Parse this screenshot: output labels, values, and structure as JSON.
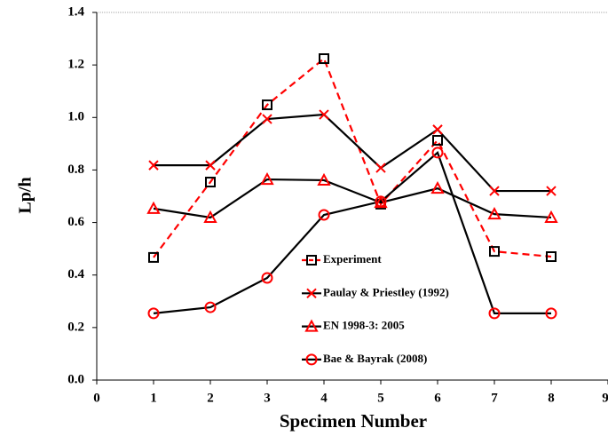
{
  "chart_data": {
    "type": "line",
    "xlabel": "Specimen Number",
    "ylabel": "Lp/h",
    "x": [
      1,
      2,
      3,
      4,
      5,
      6,
      7,
      8
    ],
    "series": [
      {
        "name": "Experiment",
        "values": [
          0.467,
          0.754,
          1.048,
          1.224,
          0.67,
          0.913,
          0.49,
          0.47
        ],
        "line_color": "#ff0000",
        "dashed": true,
        "marker": "square",
        "marker_color": "#000000"
      },
      {
        "name": "Paulay & Priestley (1992)",
        "values": [
          0.818,
          0.818,
          0.994,
          1.011,
          0.808,
          0.954,
          0.72,
          0.72
        ],
        "line_color": "#000000",
        "dashed": false,
        "marker": "x",
        "marker_color": "#ff0000"
      },
      {
        "name": "EN 1998-3: 2005",
        "values": [
          0.653,
          0.619,
          0.764,
          0.761,
          0.676,
          0.73,
          0.632,
          0.619
        ],
        "line_color": "#000000",
        "dashed": false,
        "marker": "triangle",
        "marker_color": "#ff0000"
      },
      {
        "name": "Bae & Bayrak (2008)",
        "values": [
          0.254,
          0.277,
          0.389,
          0.629,
          0.68,
          0.866,
          0.254,
          0.254
        ],
        "line_color": "#000000",
        "dashed": false,
        "marker": "circle",
        "marker_color": "#ff0000"
      }
    ],
    "xlim": [
      0,
      9
    ],
    "xticks": [
      0,
      1,
      2,
      3,
      4,
      5,
      6,
      7,
      8,
      9
    ],
    "ylim": [
      0,
      1.4
    ],
    "yticks": [
      {
        "value": 0,
        "label": "0.0"
      },
      {
        "value": 0.2,
        "label": "0.2"
      },
      {
        "value": 0.4,
        "label": "0.4"
      },
      {
        "value": 0.6,
        "label": "0.6"
      },
      {
        "value": 0.8,
        "label": "0.8"
      },
      {
        "value": 1,
        "label": "1.0"
      },
      {
        "value": 1.2,
        "label": "1.2"
      },
      {
        "value": 1.4,
        "label": "1.4"
      }
    ],
    "grid": false
  }
}
